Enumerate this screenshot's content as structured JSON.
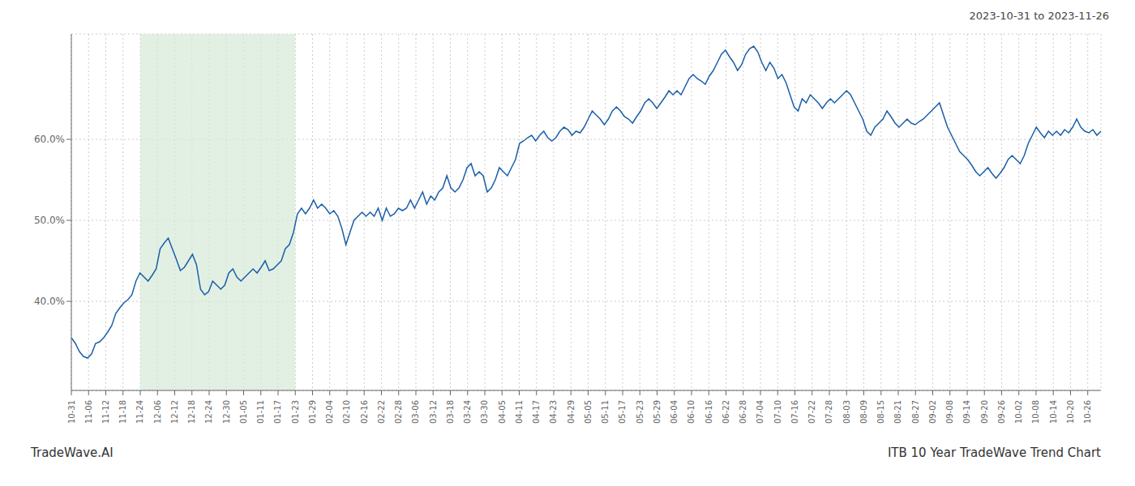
{
  "chart_data": {
    "type": "line",
    "subtitle": "2023-10-31 to 2023-11-26",
    "annotations": [
      "TradeWave.AI",
      "ITB 10 Year TradeWave Trend Chart"
    ],
    "color": "#1a5fa8",
    "grid": true,
    "highlight": {
      "start": 17.066666666667,
      "end": 55.466666666667,
      "color": "#d6ead9"
    },
    "xlim": [
      0,
      255
    ],
    "xticks": [
      {
        "value": 0,
        "label": "10-31"
      },
      {
        "value": 4.266666666667,
        "label": "11-06"
      },
      {
        "value": 8.533333333333,
        "label": "11-12"
      },
      {
        "value": 12.8,
        "label": "11-18"
      },
      {
        "value": 17.066666666667,
        "label": "11-24"
      },
      {
        "value": 21.333333333333,
        "label": "12-06"
      },
      {
        "value": 25.6,
        "label": "12-12"
      },
      {
        "value": 29.866666666667,
        "label": "12-18"
      },
      {
        "value": 34.133333333333,
        "label": "12-24"
      },
      {
        "value": 38.4,
        "label": "12-30"
      },
      {
        "value": 42.666666666667,
        "label": "01-05"
      },
      {
        "value": 46.933333333333,
        "label": "01-11"
      },
      {
        "value": 51.2,
        "label": "01-17"
      },
      {
        "value": 55.466666666667,
        "label": "01-23"
      },
      {
        "value": 59.733333333333,
        "label": "01-29"
      },
      {
        "value": 64,
        "label": "02-04"
      },
      {
        "value": 68.266666666667,
        "label": "02-10"
      },
      {
        "value": 72.533333333333,
        "label": "02-16"
      },
      {
        "value": 76.8,
        "label": "02-22"
      },
      {
        "value": 81.066666666667,
        "label": "02-28"
      },
      {
        "value": 85.333333333333,
        "label": "03-06"
      },
      {
        "value": 89.6,
        "label": "03-12"
      },
      {
        "value": 93.866666666667,
        "label": "03-18"
      },
      {
        "value": 98.133333333333,
        "label": "03-24"
      },
      {
        "value": 102.4,
        "label": "03-30"
      },
      {
        "value": 106.666666666667,
        "label": "04-05"
      },
      {
        "value": 110.933333333333,
        "label": "04-11"
      },
      {
        "value": 115.2,
        "label": "04-17"
      },
      {
        "value": 119.466666666667,
        "label": "04-23"
      },
      {
        "value": 123.733333333333,
        "label": "04-29"
      },
      {
        "value": 128,
        "label": "05-05"
      },
      {
        "value": 132.266666666667,
        "label": "05-11"
      },
      {
        "value": 136.533333333333,
        "label": "05-17"
      },
      {
        "value": 140.8,
        "label": "05-23"
      },
      {
        "value": 145.066666666667,
        "label": "05-29"
      },
      {
        "value": 149.333333333333,
        "label": "06-04"
      },
      {
        "value": 153.6,
        "label": "06-10"
      },
      {
        "value": 157.866666666667,
        "label": "06-16"
      },
      {
        "value": 162.133333333333,
        "label": "06-22"
      },
      {
        "value": 166.4,
        "label": "06-28"
      },
      {
        "value": 170.666666666667,
        "label": "07-04"
      },
      {
        "value": 174.933333333333,
        "label": "07-10"
      },
      {
        "value": 179.2,
        "label": "07-16"
      },
      {
        "value": 183.466666666667,
        "label": "07-22"
      },
      {
        "value": 187.733333333333,
        "label": "07-28"
      },
      {
        "value": 192,
        "label": "08-03"
      },
      {
        "value": 196.266666666667,
        "label": "08-09"
      },
      {
        "value": 200.533333333333,
        "label": "08-15"
      },
      {
        "value": 204.8,
        "label": "08-21"
      },
      {
        "value": 209.066666666667,
        "label": "08-27"
      },
      {
        "value": 213.333333333333,
        "label": "09-02"
      },
      {
        "value": 217.6,
        "label": "09-08"
      },
      {
        "value": 221.866666666667,
        "label": "09-14"
      },
      {
        "value": 226.133333333333,
        "label": "09-20"
      },
      {
        "value": 230.4,
        "label": "09-26"
      },
      {
        "value": 234.666666666667,
        "label": "10-02"
      },
      {
        "value": 238.933333333333,
        "label": "10-08"
      },
      {
        "value": 243.2,
        "label": "10-14"
      },
      {
        "value": 247.466666666667,
        "label": "10-20"
      },
      {
        "value": 251.733333333333,
        "label": "10-26"
      }
    ],
    "ylim": [
      29,
      73
    ],
    "yticks": [
      {
        "value": 40,
        "label": "40.0%"
      },
      {
        "value": 50,
        "label": "50.0%"
      },
      {
        "value": 60,
        "label": "60.0%"
      }
    ],
    "x": [
      0,
      1,
      2,
      3,
      4,
      5,
      6,
      7,
      8,
      9,
      10,
      11,
      12,
      13,
      14,
      15,
      16,
      17,
      18,
      19,
      20,
      21,
      22,
      23,
      24,
      25,
      26,
      27,
      28,
      29,
      30,
      31,
      32,
      33,
      34,
      35,
      36,
      37,
      38,
      39,
      40,
      41,
      42,
      43,
      44,
      45,
      46,
      47,
      48,
      49,
      50,
      51,
      52,
      53,
      54,
      55,
      56,
      57,
      58,
      59,
      60,
      61,
      62,
      63,
      64,
      65,
      66,
      67,
      68,
      69,
      70,
      71,
      72,
      73,
      74,
      75,
      76,
      77,
      78,
      79,
      80,
      81,
      82,
      83,
      84,
      85,
      86,
      87,
      88,
      89,
      90,
      91,
      92,
      93,
      94,
      95,
      96,
      97,
      98,
      99,
      100,
      101,
      102,
      103,
      104,
      105,
      106,
      107,
      108,
      109,
      110,
      111,
      112,
      113,
      114,
      115,
      116,
      117,
      118,
      119,
      120,
      121,
      122,
      123,
      124,
      125,
      126,
      127,
      128,
      129,
      130,
      131,
      132,
      133,
      134,
      135,
      136,
      137,
      138,
      139,
      140,
      141,
      142,
      143,
      144,
      145,
      146,
      147,
      148,
      149,
      150,
      151,
      152,
      153,
      154,
      155,
      156,
      157,
      158,
      159,
      160,
      161,
      162,
      163,
      164,
      165,
      166,
      167,
      168,
      169,
      170,
      171,
      172,
      173,
      174,
      175,
      176,
      177,
      178,
      179,
      180,
      181,
      182,
      183,
      184,
      185,
      186,
      187,
      188,
      189,
      190,
      191,
      192,
      193,
      194,
      195,
      196,
      197,
      198,
      199,
      200,
      201,
      202,
      203,
      204,
      205,
      206,
      207,
      208,
      209,
      210,
      211,
      212,
      213,
      214,
      215,
      216,
      217,
      218,
      219,
      220,
      221,
      222,
      223,
      224,
      225,
      226,
      227,
      228,
      229,
      230,
      231,
      232,
      233,
      234,
      235,
      236,
      237,
      238,
      239,
      240,
      241,
      242,
      243,
      244,
      245,
      246,
      247,
      248,
      249,
      250,
      251,
      252,
      253,
      254,
      255
    ],
    "values": [
      35.5,
      34.8,
      33.8,
      33.2,
      33.0,
      33.5,
      34.8,
      35.0,
      35.5,
      36.2,
      37.0,
      38.5,
      39.2,
      39.8,
      40.2,
      40.8,
      42.5,
      43.5,
      43.0,
      42.5,
      43.2,
      44.0,
      46.5,
      47.2,
      47.8,
      46.5,
      45.2,
      43.8,
      44.2,
      45.0,
      45.8,
      44.5,
      41.5,
      40.8,
      41.2,
      42.5,
      42.0,
      41.5,
      42.0,
      43.5,
      44.0,
      43.0,
      42.5,
      43.0,
      43.5,
      44.0,
      43.5,
      44.2,
      45.0,
      43.8,
      44.0,
      44.5,
      45.0,
      46.5,
      47.0,
      48.5,
      50.8,
      51.5,
      50.8,
      51.5,
      52.5,
      51.5,
      52.0,
      51.5,
      50.8,
      51.2,
      50.5,
      49.0,
      47.0,
      48.5,
      50.0,
      50.5,
      51.0,
      50.5,
      51.0,
      50.5,
      51.5,
      50.0,
      51.5,
      50.5,
      50.8,
      51.5,
      51.2,
      51.5,
      52.5,
      51.5,
      52.5,
      53.5,
      52.0,
      53.0,
      52.5,
      53.5,
      54.0,
      55.5,
      54.0,
      53.5,
      54.0,
      55.0,
      56.5,
      57.0,
      55.5,
      56.0,
      55.5,
      53.5,
      54.0,
      55.0,
      56.5,
      56.0,
      55.5,
      56.5,
      57.5,
      59.5,
      59.8,
      60.2,
      60.5,
      59.8,
      60.5,
      61.0,
      60.2,
      59.8,
      60.2,
      61.0,
      61.5,
      61.2,
      60.5,
      61.0,
      60.8,
      61.5,
      62.5,
      63.5,
      63.0,
      62.5,
      61.8,
      62.5,
      63.5,
      64.0,
      63.5,
      62.8,
      62.5,
      62.0,
      62.8,
      63.5,
      64.5,
      65.0,
      64.5,
      63.8,
      64.5,
      65.2,
      66.0,
      65.5,
      66.0,
      65.5,
      66.5,
      67.5,
      68.0,
      67.5,
      67.2,
      66.8,
      67.8,
      68.5,
      69.5,
      70.5,
      71.0,
      70.2,
      69.5,
      68.5,
      69.2,
      70.5,
      71.2,
      71.5,
      70.8,
      69.5,
      68.5,
      69.5,
      68.8,
      67.5,
      68.0,
      67.0,
      65.5,
      64.0,
      63.5,
      65.0,
      64.5,
      65.5,
      65.0,
      64.5,
      63.8,
      64.5,
      65.0,
      64.5,
      65.0,
      65.5,
      66.0,
      65.5,
      64.5,
      63.5,
      62.5,
      61.0,
      60.5,
      61.5,
      62.0,
      62.5,
      63.5,
      62.8,
      62.0,
      61.5,
      62.0,
      62.5,
      62.0,
      61.8,
      62.2,
      62.5,
      63.0,
      63.5,
      64.0,
      64.5,
      63.0,
      61.5,
      60.5,
      59.5,
      58.5,
      58.0,
      57.5,
      56.8,
      56.0,
      55.5,
      56.0,
      56.5,
      55.8,
      55.2,
      55.8,
      56.5,
      57.5,
      58.0,
      57.5,
      57.0,
      58.0,
      59.5,
      60.5,
      61.5,
      60.8,
      60.2,
      61.0,
      60.5,
      61.0,
      60.5,
      61.2,
      60.8,
      61.5,
      62.5,
      61.5,
      61.0,
      60.8,
      61.2,
      60.5,
      61.0
    ]
  }
}
